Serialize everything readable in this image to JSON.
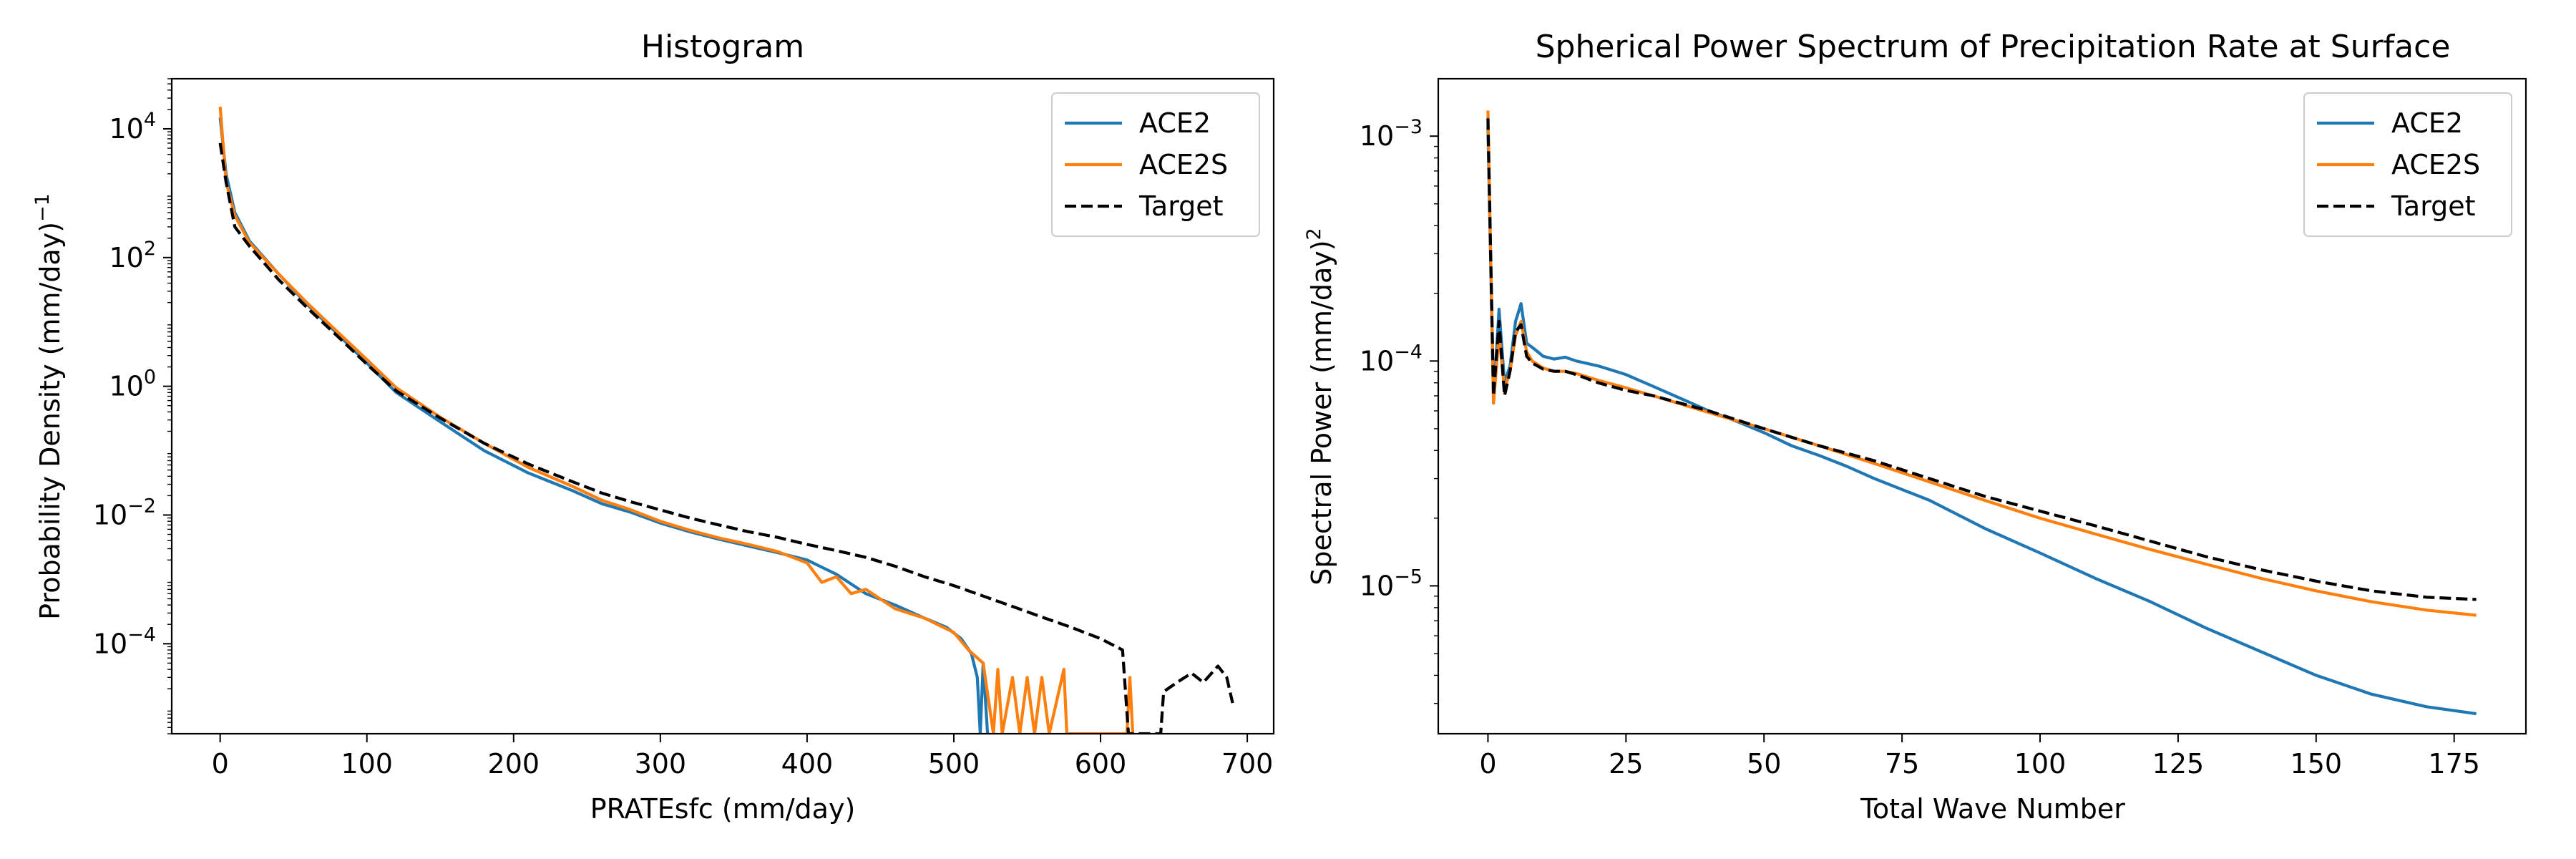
{
  "chart_data": [
    {
      "type": "line",
      "title": "Histogram",
      "xlabel": "PRATEsfc (mm/day)",
      "ylabel": "Probability Density (mm/day)",
      "ylabel_sup": "−1",
      "xscale": "linear",
      "yscale": "log",
      "xlim": [
        -33,
        718
      ],
      "ylim": [
        4e-06,
        60000.0
      ],
      "xticks": [
        0,
        100,
        200,
        300,
        400,
        500,
        600,
        700
      ],
      "xtick_labels": [
        "0",
        "100",
        "200",
        "300",
        "400",
        "500",
        "600",
        "700"
      ],
      "yticks": [
        0.0001,
        0.01,
        1,
        100,
        10000
      ],
      "ytick_labels": [
        {
          "base": "10",
          "exp": "−4"
        },
        {
          "base": "10",
          "exp": "−2"
        },
        {
          "base": "10",
          "exp": "0"
        },
        {
          "base": "10",
          "exp": "2"
        },
        {
          "base": "10",
          "exp": "4"
        }
      ],
      "legend": {
        "position": "top-right",
        "entries": [
          "ACE2",
          "ACE2S",
          "Target"
        ]
      },
      "series": [
        {
          "name": "ACE2",
          "color": "#1f77b4",
          "style": "solid",
          "points": [
            [
              0,
              15000
            ],
            [
              4,
              2000
            ],
            [
              10,
              500
            ],
            [
              20,
              180
            ],
            [
              40,
              55
            ],
            [
              60,
              18
            ],
            [
              80,
              6.5
            ],
            [
              100,
              2.3
            ],
            [
              120,
              0.8
            ],
            [
              150,
              0.28
            ],
            [
              180,
              0.1
            ],
            [
              210,
              0.045
            ],
            [
              240,
              0.024
            ],
            [
              260,
              0.015
            ],
            [
              280,
              0.011
            ],
            [
              300,
              0.0075
            ],
            [
              320,
              0.0055
            ],
            [
              340,
              0.0042
            ],
            [
              360,
              0.0033
            ],
            [
              380,
              0.0026
            ],
            [
              400,
              0.002
            ],
            [
              420,
              0.0012
            ],
            [
              440,
              0.0006
            ],
            [
              460,
              0.0004
            ],
            [
              480,
              0.00025
            ],
            [
              495,
              0.00018
            ],
            [
              505,
              0.00012
            ],
            [
              512,
              7e-05
            ],
            [
              516,
              3e-05
            ],
            [
              518,
              4e-06
            ],
            [
              520,
              5e-05
            ],
            [
              523,
              4e-06
            ]
          ]
        },
        {
          "name": "ACE2S",
          "color": "#ff7f0e",
          "style": "solid",
          "points": [
            [
              0,
              22000
            ],
            [
              4,
              1500
            ],
            [
              10,
              450
            ],
            [
              20,
              170
            ],
            [
              40,
              55
            ],
            [
              60,
              19
            ],
            [
              80,
              7
            ],
            [
              100,
              2.6
            ],
            [
              120,
              0.95
            ],
            [
              150,
              0.33
            ],
            [
              180,
              0.13
            ],
            [
              210,
              0.055
            ],
            [
              240,
              0.028
            ],
            [
              260,
              0.017
            ],
            [
              280,
              0.012
            ],
            [
              300,
              0.008
            ],
            [
              320,
              0.0058
            ],
            [
              340,
              0.0044
            ],
            [
              360,
              0.0035
            ],
            [
              380,
              0.0027
            ],
            [
              400,
              0.0018
            ],
            [
              410,
              0.0009
            ],
            [
              420,
              0.0011
            ],
            [
              430,
              0.0006
            ],
            [
              440,
              0.0007
            ],
            [
              460,
              0.00035
            ],
            [
              480,
              0.00025
            ],
            [
              500,
              0.00015
            ],
            [
              510,
              8e-05
            ],
            [
              520,
              5e-05
            ],
            [
              527,
              4e-06
            ],
            [
              530,
              4e-05
            ],
            [
              533,
              4e-06
            ],
            [
              540,
              3e-05
            ],
            [
              545,
              4e-06
            ],
            [
              550,
              3e-05
            ],
            [
              555,
              4e-06
            ],
            [
              560,
              3e-05
            ],
            [
              565,
              4e-06
            ],
            [
              575,
              4e-05
            ],
            [
              577,
              4e-06
            ],
            [
              580,
              4e-06
            ],
            [
              618,
              4e-06
            ],
            [
              620,
              3e-05
            ],
            [
              622,
              4e-06
            ]
          ]
        },
        {
          "name": "Target",
          "color": "#000000",
          "style": "dashed",
          "points": [
            [
              0,
              6000
            ],
            [
              4,
              1500
            ],
            [
              10,
              300
            ],
            [
              20,
              150
            ],
            [
              40,
              45
            ],
            [
              60,
              16
            ],
            [
              80,
              6
            ],
            [
              100,
              2.2
            ],
            [
              120,
              0.85
            ],
            [
              150,
              0.32
            ],
            [
              180,
              0.13
            ],
            [
              210,
              0.062
            ],
            [
              240,
              0.033
            ],
            [
              260,
              0.022
            ],
            [
              280,
              0.016
            ],
            [
              300,
              0.012
            ],
            [
              320,
              0.009
            ],
            [
              340,
              0.007
            ],
            [
              360,
              0.0055
            ],
            [
              380,
              0.0045
            ],
            [
              400,
              0.0035
            ],
            [
              420,
              0.0028
            ],
            [
              440,
              0.0022
            ],
            [
              460,
              0.0016
            ],
            [
              480,
              0.0011
            ],
            [
              500,
              0.0008
            ],
            [
              520,
              0.00055
            ],
            [
              540,
              0.00038
            ],
            [
              560,
              0.00026
            ],
            [
              580,
              0.00018
            ],
            [
              600,
              0.00012
            ],
            [
              615,
              8e-05
            ],
            [
              619,
              4e-06
            ],
            [
              641,
              4e-06
            ],
            [
              643,
              1.8e-05
            ],
            [
              652,
              2.5e-05
            ],
            [
              662,
              3.5e-05
            ],
            [
              670,
              2.5e-05
            ],
            [
              680,
              4.5e-05
            ],
            [
              686,
              3e-05
            ],
            [
              690,
              1.2e-05
            ]
          ]
        }
      ]
    },
    {
      "type": "line",
      "title": "Spherical Power Spectrum of Precipitation Rate at Surface",
      "xlabel": "Total Wave Number",
      "ylabel": "Spectral Power (mm/day)",
      "ylabel_sup": "2",
      "xscale": "linear",
      "yscale": "log",
      "xlim": [
        -9,
        188
      ],
      "ylim": [
        2.2e-06,
        0.0018
      ],
      "xticks": [
        0,
        25,
        50,
        75,
        100,
        125,
        150,
        175
      ],
      "xtick_labels": [
        "0",
        "25",
        "50",
        "75",
        "100",
        "125",
        "150",
        "175"
      ],
      "yticks": [
        1e-05,
        0.0001,
        0.001
      ],
      "ytick_labels": [
        {
          "base": "10",
          "exp": "−5"
        },
        {
          "base": "10",
          "exp": "−4"
        },
        {
          "base": "10",
          "exp": "−3"
        }
      ],
      "legend": {
        "position": "top-right",
        "entries": [
          "ACE2",
          "ACE2S",
          "Target"
        ]
      },
      "series": [
        {
          "name": "ACE2",
          "color": "#1f77b4",
          "style": "solid",
          "points": [
            [
              0,
              0.0011
            ],
            [
              1,
              6.5e-05
            ],
            [
              2,
              0.00017
            ],
            [
              3,
              8e-05
            ],
            [
              4,
              9.5e-05
            ],
            [
              5,
              0.00015
            ],
            [
              6,
              0.00018
            ],
            [
              7,
              0.00012
            ],
            [
              8,
              0.000115
            ],
            [
              9,
              0.00011
            ],
            [
              10,
              0.000105
            ],
            [
              12,
              0.000102
            ],
            [
              14,
              0.000104
            ],
            [
              16,
              0.0001
            ],
            [
              20,
              9.5e-05
            ],
            [
              25,
              8.7e-05
            ],
            [
              30,
              7.7e-05
            ],
            [
              35,
              6.8e-05
            ],
            [
              40,
              6e-05
            ],
            [
              45,
              5.4e-05
            ],
            [
              50,
              4.8e-05
            ],
            [
              55,
              4.2e-05
            ],
            [
              60,
              3.8e-05
            ],
            [
              65,
              3.4e-05
            ],
            [
              70,
              3e-05
            ],
            [
              80,
              2.4e-05
            ],
            [
              90,
              1.8e-05
            ],
            [
              100,
              1.4e-05
            ],
            [
              110,
              1.08e-05
            ],
            [
              120,
              8.5e-06
            ],
            [
              130,
              6.5e-06
            ],
            [
              140,
              5.1e-06
            ],
            [
              150,
              4e-06
            ],
            [
              160,
              3.3e-06
            ],
            [
              170,
              2.9e-06
            ],
            [
              179,
              2.7e-06
            ]
          ]
        },
        {
          "name": "ACE2S",
          "color": "#ff7f0e",
          "style": "solid",
          "points": [
            [
              0,
              0.0013
            ],
            [
              1,
              6.5e-05
            ],
            [
              2,
              0.00013
            ],
            [
              3,
              7.5e-05
            ],
            [
              4,
              9e-05
            ],
            [
              5,
              0.00013
            ],
            [
              6,
              0.00015
            ],
            [
              7,
              0.00011
            ],
            [
              8,
              0.0001
            ],
            [
              10,
              9.3e-05
            ],
            [
              12,
              9e-05
            ],
            [
              14,
              9e-05
            ],
            [
              16,
              8.8e-05
            ],
            [
              20,
              8.2e-05
            ],
            [
              25,
              7.6e-05
            ],
            [
              30,
              7e-05
            ],
            [
              40,
              5.9e-05
            ],
            [
              50,
              5e-05
            ],
            [
              60,
              4.2e-05
            ],
            [
              70,
              3.5e-05
            ],
            [
              80,
              2.9e-05
            ],
            [
              90,
              2.4e-05
            ],
            [
              100,
              2e-05
            ],
            [
              110,
              1.7e-05
            ],
            [
              120,
              1.45e-05
            ],
            [
              130,
              1.25e-05
            ],
            [
              140,
              1.08e-05
            ],
            [
              150,
              9.5e-06
            ],
            [
              160,
              8.5e-06
            ],
            [
              170,
              7.8e-06
            ],
            [
              179,
              7.4e-06
            ]
          ]
        },
        {
          "name": "Target",
          "color": "#000000",
          "style": "dashed",
          "points": [
            [
              0,
              0.0012
            ],
            [
              1,
              7e-05
            ],
            [
              2,
              0.00015
            ],
            [
              3,
              7e-05
            ],
            [
              4,
              9e-05
            ],
            [
              5,
              0.000135
            ],
            [
              6,
              0.000145
            ],
            [
              7,
              0.000105
            ],
            [
              8,
              9.8e-05
            ],
            [
              10,
              9.2e-05
            ],
            [
              12,
              9e-05
            ],
            [
              14,
              9e-05
            ],
            [
              16,
              8.7e-05
            ],
            [
              20,
              8e-05
            ],
            [
              25,
              7.4e-05
            ],
            [
              30,
              7e-05
            ],
            [
              40,
              6e-05
            ],
            [
              50,
              5e-05
            ],
            [
              60,
              4.2e-05
            ],
            [
              70,
              3.6e-05
            ],
            [
              80,
              3e-05
            ],
            [
              90,
              2.5e-05
            ],
            [
              100,
              2.15e-05
            ],
            [
              110,
              1.85e-05
            ],
            [
              120,
              1.58e-05
            ],
            [
              130,
              1.35e-05
            ],
            [
              140,
              1.18e-05
            ],
            [
              150,
              1.05e-05
            ],
            [
              160,
              9.5e-06
            ],
            [
              170,
              8.9e-06
            ],
            [
              179,
              8.7e-06
            ]
          ]
        }
      ]
    }
  ]
}
